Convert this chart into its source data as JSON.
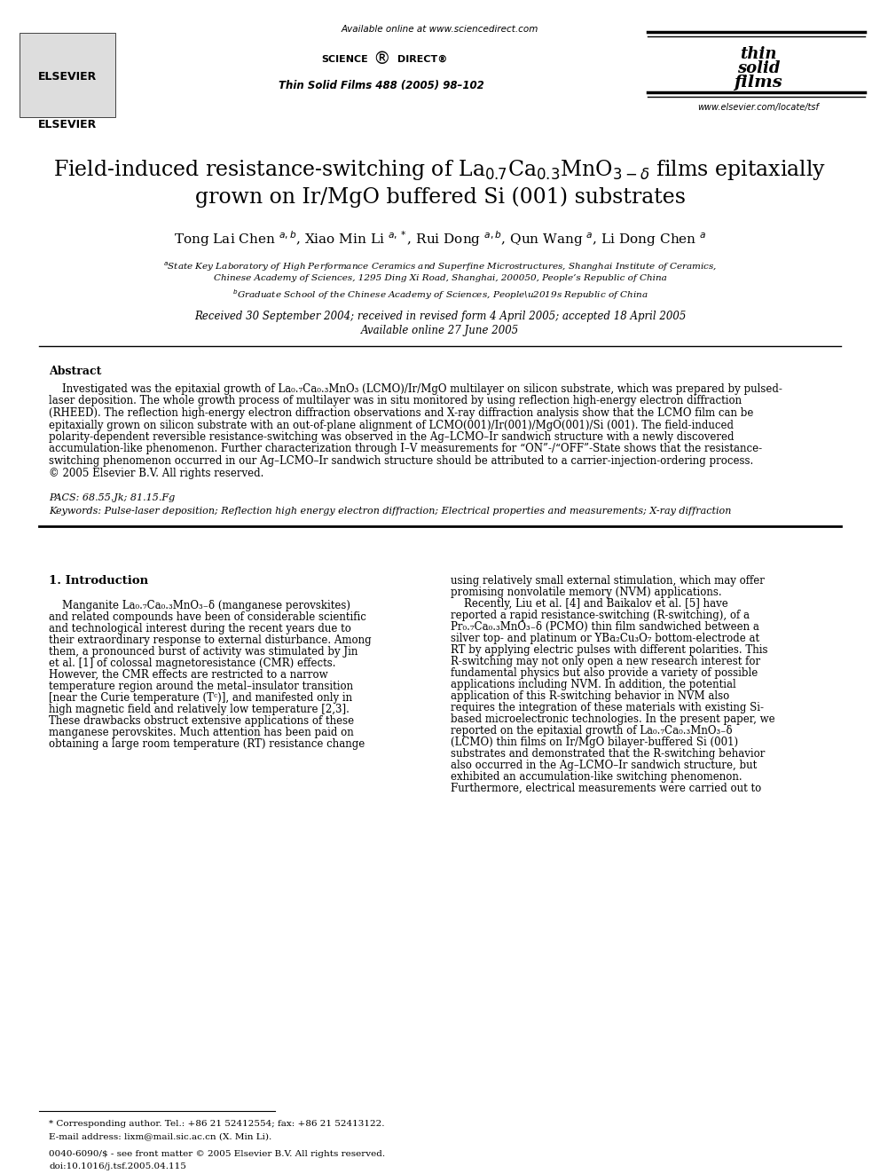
{
  "bg_color": "#ffffff",
  "header_url": "Available online at www.sciencedirect.com",
  "journal_ref": "Thin Solid Films 488 (2005) 98–102",
  "abstract_title": "Abstract",
  "pacs": "PACS: 68.55.Jk; 81.15.Fg",
  "keywords": "Keywords: Pulse-laser deposition; Reflection high energy electron diffraction; Electrical properties and measurements; X-ray diffraction",
  "section1_title": "1. Introduction",
  "received": "Received 30 September 2004; received in revised form 4 April 2005; accepted 18 April 2005",
  "available": "Available online 27 June 2005",
  "footnote_star": "* Corresponding author. Tel.: +86 21 52412554; fax: +86 21 52413122.",
  "footnote_email": "E-mail address: lixm@mail.sic.ac.cn (X. Min Li).",
  "footer_issn": "0040-6090/$ - see front matter © 2005 Elsevier B.V. All rights reserved.",
  "footer_doi": "doi:10.1016/j.tsf.2005.04.115",
  "elsevier_color": "#cccccc"
}
